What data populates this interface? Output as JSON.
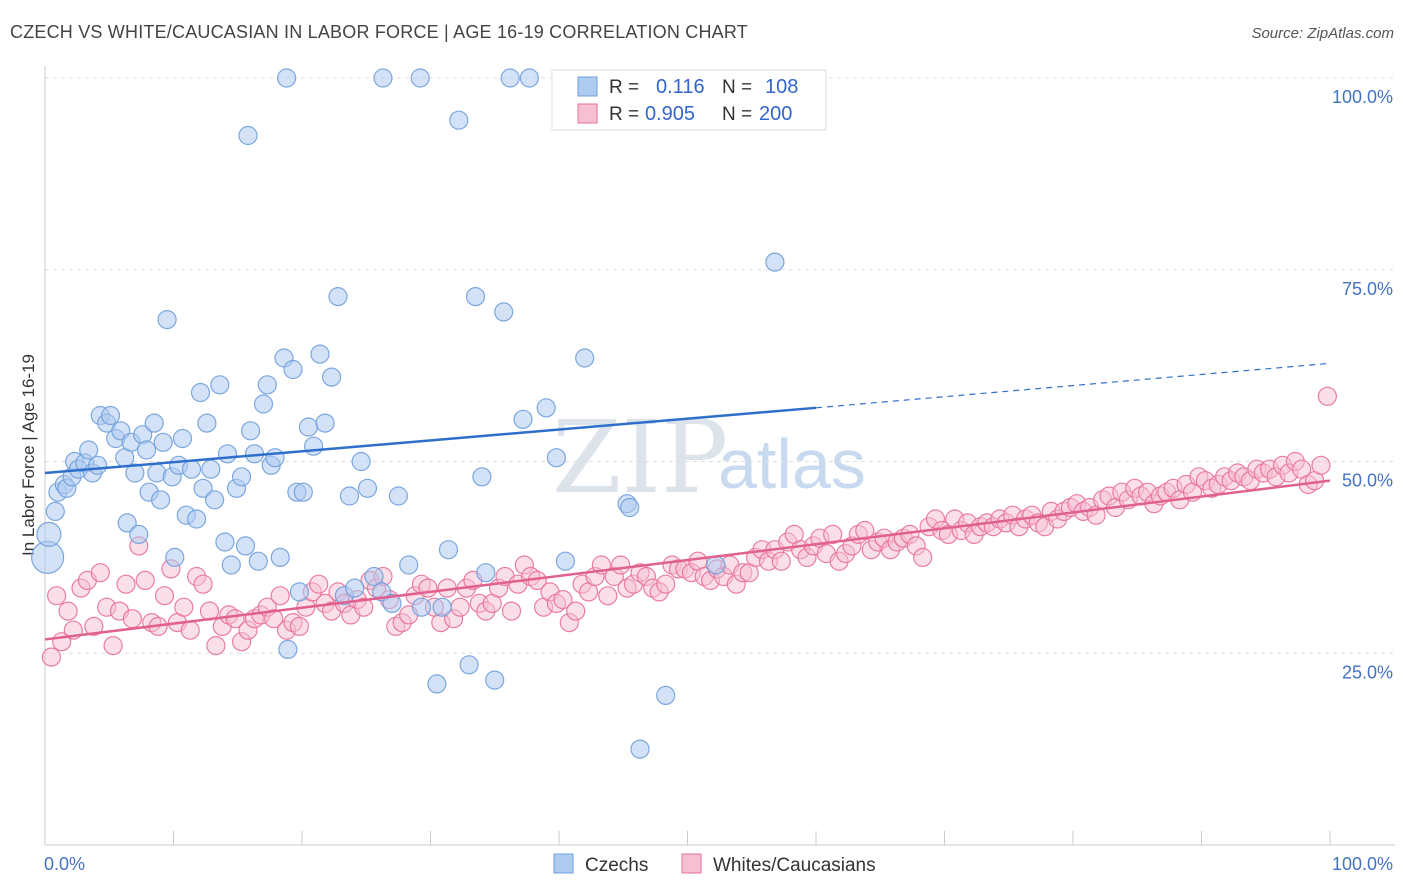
{
  "header": {
    "title": "CZECH VS WHITE/CAUCASIAN IN LABOR FORCE | AGE 16-19 CORRELATION CHART",
    "source": "Source: ZipAtlas.com"
  },
  "watermark": {
    "zip": "ZIP",
    "atlas": "atlas"
  },
  "legend_box": {
    "rows": [
      {
        "r_label": "R =",
        "r_value": "0.116",
        "n_label": "N =",
        "n_value": "108"
      },
      {
        "r_label": "R =",
        "r_value": "0.905",
        "n_label": "N =",
        "n_value": "200"
      }
    ]
  },
  "bottom_legend": {
    "items": [
      "Czechs",
      "Whites/Caucasians"
    ]
  },
  "chart_data": {
    "type": "scatter",
    "title": "CZECH VS WHITE/CAUCASIAN IN LABOR FORCE | AGE 16-19 CORRELATION CHART",
    "xlabel": "",
    "ylabel": "In Labor Force | Age 16-19",
    "xlim": [
      0,
      100
    ],
    "ylim": [
      0,
      100
    ],
    "x_tick_labels": [
      "0.0%",
      "100.0%"
    ],
    "y_ticks": [
      25,
      50,
      75,
      100
    ],
    "y_tick_labels": [
      "25.0%",
      "50.0%",
      "75.0%",
      "100.0%"
    ],
    "grid": true,
    "legend_position": "bottom",
    "series": [
      {
        "name": "Czechs",
        "color": "#6f9fdc",
        "fill": "#aecbf0",
        "r": "0.116",
        "n": "108",
        "trend": {
          "x0": 0,
          "y0": 48.5,
          "x1": 60,
          "y1": 57.0,
          "x_dash_end": 100,
          "y_dash_end": 62.8
        },
        "points": [
          [
            0.2,
            37.5
          ],
          [
            0.3,
            40.5
          ],
          [
            0.8,
            43.5
          ],
          [
            1.0,
            46
          ],
          [
            1.5,
            47
          ],
          [
            1.7,
            46.5
          ],
          [
            2.1,
            48
          ],
          [
            2.3,
            50
          ],
          [
            2.6,
            49
          ],
          [
            3.1,
            49.8
          ],
          [
            3.4,
            51.5
          ],
          [
            3.7,
            48.5
          ],
          [
            4.1,
            49.5
          ],
          [
            4.3,
            56
          ],
          [
            4.8,
            55
          ],
          [
            5.1,
            56
          ],
          [
            5.5,
            53
          ],
          [
            5.9,
            54
          ],
          [
            6.2,
            50.5
          ],
          [
            6.4,
            42
          ],
          [
            6.7,
            52.5
          ],
          [
            7.0,
            48.5
          ],
          [
            7.3,
            40.5
          ],
          [
            7.6,
            53.5
          ],
          [
            7.9,
            51.5
          ],
          [
            8.1,
            46
          ],
          [
            8.5,
            55
          ],
          [
            8.7,
            48.5
          ],
          [
            9.0,
            45
          ],
          [
            9.2,
            52.5
          ],
          [
            9.5,
            68.5
          ],
          [
            9.9,
            48
          ],
          [
            10.1,
            37.5
          ],
          [
            10.4,
            49.5
          ],
          [
            10.7,
            53
          ],
          [
            11.0,
            43
          ],
          [
            11.4,
            49
          ],
          [
            11.8,
            42.5
          ],
          [
            12.1,
            59
          ],
          [
            12.3,
            46.5
          ],
          [
            12.6,
            55
          ],
          [
            12.9,
            49
          ],
          [
            13.2,
            45
          ],
          [
            13.6,
            60
          ],
          [
            14.0,
            39.5
          ],
          [
            14.2,
            51
          ],
          [
            14.5,
            36.5
          ],
          [
            14.9,
            46.5
          ],
          [
            15.3,
            48
          ],
          [
            15.6,
            39
          ],
          [
            16.0,
            54
          ],
          [
            16.3,
            51
          ],
          [
            16.6,
            37
          ],
          [
            17.0,
            57.5
          ],
          [
            17.3,
            60
          ],
          [
            17.6,
            49.5
          ],
          [
            17.9,
            50.5
          ],
          [
            18.3,
            37.5
          ],
          [
            18.6,
            63.5
          ],
          [
            18.9,
            25.5
          ],
          [
            19.3,
            62
          ],
          [
            19.6,
            46
          ],
          [
            19.8,
            33
          ],
          [
            20.1,
            46
          ],
          [
            20.5,
            54.5
          ],
          [
            20.9,
            52
          ],
          [
            21.4,
            64
          ],
          [
            21.8,
            55
          ],
          [
            22.3,
            61
          ],
          [
            22.8,
            71.5
          ],
          [
            23.3,
            32.5
          ],
          [
            23.7,
            45.5
          ],
          [
            24.1,
            33.5
          ],
          [
            24.6,
            50
          ],
          [
            25.1,
            46.5
          ],
          [
            25.6,
            35
          ],
          [
            26.2,
            33
          ],
          [
            27.0,
            31.5
          ],
          [
            27.5,
            45.5
          ],
          [
            28.3,
            36.5
          ],
          [
            29.3,
            31
          ],
          [
            30.5,
            21
          ],
          [
            30.9,
            31
          ],
          [
            31.4,
            38.5
          ],
          [
            32.2,
            94.5
          ],
          [
            33.0,
            23.5
          ],
          [
            33.5,
            71.5
          ],
          [
            34.0,
            48
          ],
          [
            34.3,
            35.5
          ],
          [
            35.0,
            21.5
          ],
          [
            35.7,
            69.5
          ],
          [
            37.2,
            55.5
          ],
          [
            39.0,
            57
          ],
          [
            39.8,
            50.5
          ],
          [
            40.5,
            37
          ],
          [
            42.0,
            63.5
          ],
          [
            45.3,
            44.5
          ],
          [
            45.5,
            44
          ],
          [
            46.3,
            12.5
          ],
          [
            48.3,
            19.5
          ],
          [
            52.2,
            36.5
          ],
          [
            56.8,
            76
          ],
          [
            18.8,
            100
          ],
          [
            26.3,
            100
          ],
          [
            29.2,
            100
          ],
          [
            36.2,
            100
          ],
          [
            37.7,
            100
          ],
          [
            15.8,
            92.5
          ]
        ]
      },
      {
        "name": "Whites/Caucasians",
        "color": "#e8709a",
        "fill": "#f6c0d3",
        "r": "0.905",
        "n": "200",
        "trend": {
          "x0": 0,
          "y0": 26.8,
          "x1": 100,
          "y1": 47.5
        },
        "points": [
          [
            0.5,
            24.5
          ],
          [
            0.9,
            32.5
          ],
          [
            1.3,
            26.5
          ],
          [
            1.8,
            30.5
          ],
          [
            2.2,
            28
          ],
          [
            2.8,
            33.5
          ],
          [
            3.3,
            34.5
          ],
          [
            3.8,
            28.5
          ],
          [
            4.3,
            35.5
          ],
          [
            4.8,
            31
          ],
          [
            5.3,
            26
          ],
          [
            5.8,
            30.5
          ],
          [
            6.3,
            34
          ],
          [
            6.8,
            29.5
          ],
          [
            7.3,
            39
          ],
          [
            7.8,
            34.5
          ],
          [
            8.3,
            29
          ],
          [
            8.8,
            28.5
          ],
          [
            9.3,
            32.5
          ],
          [
            9.8,
            36
          ],
          [
            10.3,
            29
          ],
          [
            10.8,
            31
          ],
          [
            11.3,
            28
          ],
          [
            11.8,
            35
          ],
          [
            12.3,
            34
          ],
          [
            12.8,
            30.5
          ],
          [
            13.3,
            26
          ],
          [
            13.8,
            28.5
          ],
          [
            14.3,
            30
          ],
          [
            14.8,
            29.5
          ],
          [
            15.3,
            26.5
          ],
          [
            15.8,
            28
          ],
          [
            16.3,
            29.5
          ],
          [
            16.8,
            30
          ],
          [
            17.3,
            31
          ],
          [
            17.8,
            29.5
          ],
          [
            18.3,
            32.5
          ],
          [
            18.8,
            28
          ],
          [
            19.3,
            29
          ],
          [
            19.8,
            28.5
          ],
          [
            20.3,
            31
          ],
          [
            20.8,
            33
          ],
          [
            21.3,
            34
          ],
          [
            21.8,
            31.5
          ],
          [
            22.3,
            30.5
          ],
          [
            22.8,
            33
          ],
          [
            23.3,
            31.5
          ],
          [
            23.8,
            30
          ],
          [
            24.3,
            32
          ],
          [
            24.8,
            31
          ],
          [
            25.3,
            34.5
          ],
          [
            25.8,
            33.5
          ],
          [
            26.3,
            35
          ],
          [
            26.8,
            32
          ],
          [
            27.3,
            28.5
          ],
          [
            27.8,
            29
          ],
          [
            28.3,
            30
          ],
          [
            28.8,
            32.5
          ],
          [
            29.3,
            34
          ],
          [
            29.8,
            33.5
          ],
          [
            30.3,
            31
          ],
          [
            30.8,
            29
          ],
          [
            31.3,
            33.5
          ],
          [
            31.8,
            29.5
          ],
          [
            32.3,
            31
          ],
          [
            32.8,
            33.5
          ],
          [
            33.3,
            34.5
          ],
          [
            33.8,
            31.5
          ],
          [
            34.3,
            30.5
          ],
          [
            34.8,
            31.5
          ],
          [
            35.3,
            33.5
          ],
          [
            35.8,
            35
          ],
          [
            36.3,
            30.5
          ],
          [
            36.8,
            34
          ],
          [
            37.3,
            36.5
          ],
          [
            37.8,
            35
          ],
          [
            38.3,
            34.5
          ],
          [
            38.8,
            31
          ],
          [
            39.3,
            33
          ],
          [
            39.8,
            31.5
          ],
          [
            40.3,
            32
          ],
          [
            40.8,
            29
          ],
          [
            41.3,
            30.5
          ],
          [
            41.8,
            34
          ],
          [
            42.3,
            33
          ],
          [
            42.8,
            35
          ],
          [
            43.3,
            36.5
          ],
          [
            43.8,
            32.5
          ],
          [
            44.3,
            35
          ],
          [
            44.8,
            36.5
          ],
          [
            45.3,
            33.5
          ],
          [
            45.8,
            34
          ],
          [
            46.3,
            35.5
          ],
          [
            46.8,
            35
          ],
          [
            47.3,
            33.5
          ],
          [
            47.8,
            33
          ],
          [
            48.3,
            34
          ],
          [
            48.8,
            36.5
          ],
          [
            49.3,
            36
          ],
          [
            49.8,
            36
          ],
          [
            50.3,
            35.5
          ],
          [
            50.8,
            37
          ],
          [
            51.3,
            35
          ],
          [
            51.8,
            34.5
          ],
          [
            52.3,
            36
          ],
          [
            52.8,
            35
          ],
          [
            53.3,
            36.5
          ],
          [
            53.8,
            34
          ],
          [
            54.3,
            35.5
          ],
          [
            54.8,
            35.5
          ],
          [
            55.3,
            37.5
          ],
          [
            55.8,
            38.5
          ],
          [
            56.3,
            37
          ],
          [
            56.8,
            38.5
          ],
          [
            57.3,
            37
          ],
          [
            57.8,
            39.5
          ],
          [
            58.3,
            40.5
          ],
          [
            58.8,
            38.5
          ],
          [
            59.3,
            37.5
          ],
          [
            59.8,
            39
          ],
          [
            60.3,
            40
          ],
          [
            60.8,
            38
          ],
          [
            61.3,
            40.5
          ],
          [
            61.8,
            37
          ],
          [
            62.3,
            38
          ],
          [
            62.8,
            39
          ],
          [
            63.3,
            40.5
          ],
          [
            63.8,
            41
          ],
          [
            64.3,
            38.5
          ],
          [
            64.8,
            39.5
          ],
          [
            65.3,
            40
          ],
          [
            65.8,
            38.5
          ],
          [
            66.3,
            39.5
          ],
          [
            66.8,
            40
          ],
          [
            67.3,
            40.5
          ],
          [
            67.8,
            39
          ],
          [
            68.3,
            37.5
          ],
          [
            68.8,
            41.5
          ],
          [
            69.3,
            42.5
          ],
          [
            69.8,
            41
          ],
          [
            70.3,
            40.5
          ],
          [
            70.8,
            42.5
          ],
          [
            71.3,
            41
          ],
          [
            71.8,
            42
          ],
          [
            72.3,
            40.5
          ],
          [
            72.8,
            41.5
          ],
          [
            73.3,
            42
          ],
          [
            73.8,
            41.5
          ],
          [
            74.3,
            42.5
          ],
          [
            74.8,
            42
          ],
          [
            75.3,
            43
          ],
          [
            75.8,
            41.5
          ],
          [
            76.3,
            42.5
          ],
          [
            76.8,
            43
          ],
          [
            77.3,
            42
          ],
          [
            77.8,
            41.5
          ],
          [
            78.3,
            43.5
          ],
          [
            78.8,
            42.5
          ],
          [
            79.3,
            43.5
          ],
          [
            79.8,
            44
          ],
          [
            80.3,
            44.5
          ],
          [
            80.8,
            43.5
          ],
          [
            81.3,
            44
          ],
          [
            81.8,
            43
          ],
          [
            82.3,
            45
          ],
          [
            82.8,
            45.5
          ],
          [
            83.3,
            44
          ],
          [
            83.8,
            46
          ],
          [
            84.3,
            45
          ],
          [
            84.8,
            46.5
          ],
          [
            85.3,
            45.5
          ],
          [
            85.8,
            46
          ],
          [
            86.3,
            44.5
          ],
          [
            86.8,
            45.5
          ],
          [
            87.3,
            46
          ],
          [
            87.8,
            46.5
          ],
          [
            88.3,
            45
          ],
          [
            88.8,
            47
          ],
          [
            89.3,
            46
          ],
          [
            89.8,
            48
          ],
          [
            90.3,
            47.5
          ],
          [
            90.8,
            46.5
          ],
          [
            91.3,
            47
          ],
          [
            91.8,
            48
          ],
          [
            92.3,
            47.5
          ],
          [
            92.8,
            48.5
          ],
          [
            93.3,
            48
          ],
          [
            93.8,
            47.5
          ],
          [
            94.3,
            49
          ],
          [
            94.8,
            48.5
          ],
          [
            95.3,
            49
          ],
          [
            95.8,
            48
          ],
          [
            96.3,
            49.5
          ],
          [
            96.8,
            48.5
          ],
          [
            97.3,
            50
          ],
          [
            97.8,
            49
          ],
          [
            98.3,
            47
          ],
          [
            98.8,
            47.5
          ],
          [
            99.3,
            49.5
          ],
          [
            99.8,
            58.5
          ]
        ]
      }
    ]
  }
}
